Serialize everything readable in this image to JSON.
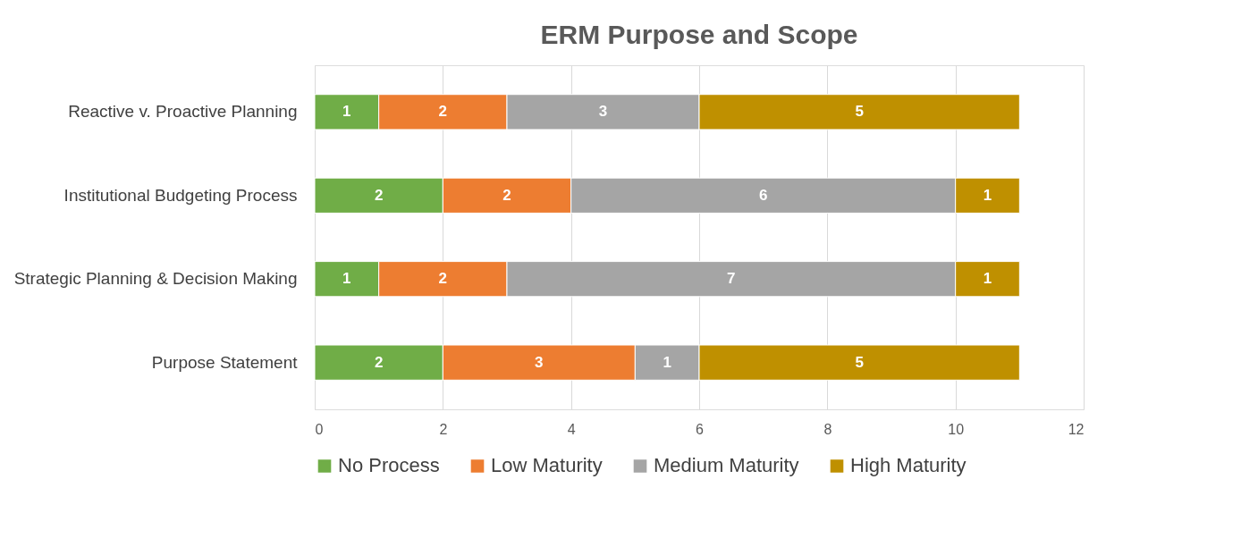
{
  "chart_data": {
    "type": "bar",
    "orientation": "horizontal",
    "stacked": true,
    "title": "ERM Purpose and Scope",
    "categories": [
      "Reactive v. Proactive Planning",
      "Institutional Budgeting Process",
      "Strategic Planning & Decision Making",
      "Purpose Statement"
    ],
    "series": [
      {
        "name": "No Process",
        "color": "#70ad47",
        "values": [
          1,
          2,
          1,
          2
        ]
      },
      {
        "name": "Low Maturity",
        "color": "#ed7d31",
        "values": [
          2,
          2,
          2,
          3
        ]
      },
      {
        "name": "Medium Maturity",
        "color": "#a5a5a5",
        "values": [
          3,
          6,
          7,
          1
        ]
      },
      {
        "name": "High Maturity",
        "color": "#bf9000",
        "values": [
          5,
          1,
          1,
          5
        ]
      }
    ],
    "xlim": [
      0,
      12
    ],
    "xticks": [
      0,
      2,
      4,
      6,
      8,
      10,
      12
    ],
    "grid": "x",
    "legend": "bottom",
    "data_labels": true
  }
}
